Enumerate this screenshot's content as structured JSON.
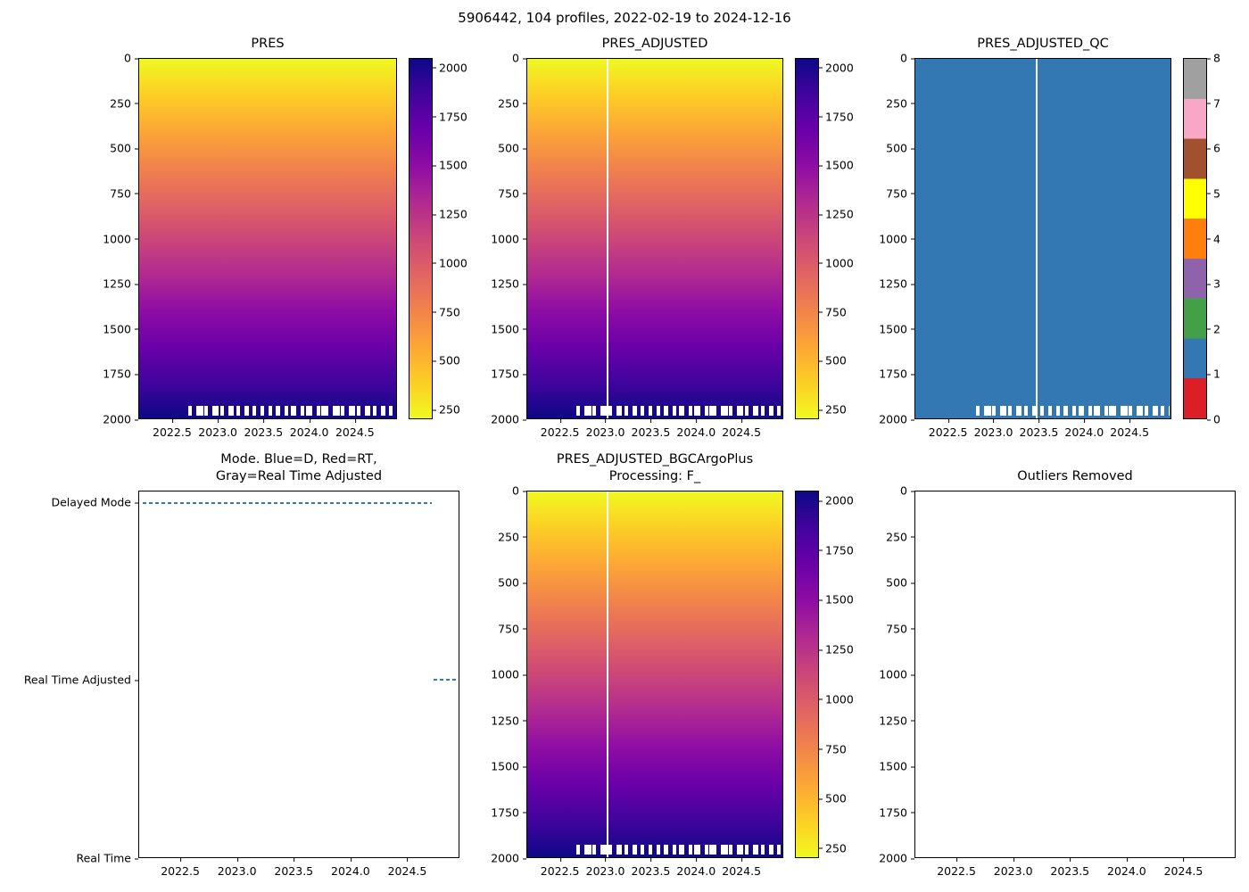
{
  "figure": {
    "title": "5906442, 104 profiles, 2022-02-19 to 2024-12-16"
  },
  "colors": {
    "plasma_surface_to_deep": [
      "#f0f921",
      "#fcce25",
      "#fca636",
      "#f1834b",
      "#e16462",
      "#cc4778",
      "#b12a90",
      "#8f0da4",
      "#6a00a8",
      "#41049d",
      "#0d0887"
    ],
    "qc_palette_0_to_8": [
      "#dc1f26",
      "#3377b3",
      "#43a047",
      "#8e63ac",
      "#ff7f0e",
      "#ffff00",
      "#a1512e",
      "#f8a8c6",
      "#a0a0a0"
    ],
    "qc_fill": "#3377b3",
    "mode_line": "#3577b4",
    "missing_data_marks": "#ffffff"
  },
  "chart_data": [
    {
      "id": "pres",
      "type": "heatmap",
      "title": "PRES",
      "xlim": [
        2022.13,
        2024.96
      ],
      "ylim": [
        0,
        2000
      ],
      "xticks": [
        "2022.5",
        "2023.0",
        "2023.5",
        "2024.0",
        "2024.5"
      ],
      "yticks": [
        "0",
        "250",
        "500",
        "750",
        "1000",
        "1250",
        "1500",
        "1750",
        "2000"
      ],
      "fill": "gradient",
      "values_note": "Pressure increases uniformly with depth for all 104 profiles: ~0 dbar at the surface (yellow) down to ~2000 dbar at the bottom (dark blue); short white dashes near 2000 m mark profiles that did not reach full depth",
      "missing_from_x": 2022.67,
      "colorbar": {
        "type": "continuous",
        "range": [
          200,
          2050
        ],
        "ticks": [
          "2000",
          "1750",
          "1500",
          "1250",
          "1000",
          "750",
          "500",
          "250"
        ]
      }
    },
    {
      "id": "pres_adjusted",
      "type": "heatmap",
      "title": "PRES_ADJUSTED",
      "xlim": [
        2022.13,
        2024.96
      ],
      "ylim": [
        0,
        2000
      ],
      "xticks": [
        "2022.5",
        "2023.0",
        "2023.5",
        "2024.0",
        "2024.5"
      ],
      "yticks": [
        "0",
        "250",
        "500",
        "750",
        "1000",
        "1250",
        "1500",
        "1750",
        "2000"
      ],
      "fill": "gradient",
      "values_note": "Adjusted pressure, same 0-2000 dbar gradient with depth; white vertical stripe = missing profile near 2023.0",
      "gap_line_x": 2023.02,
      "missing_from_x": 2022.67,
      "colorbar": {
        "type": "continuous",
        "range": [
          200,
          2050
        ],
        "ticks": [
          "2000",
          "1750",
          "1500",
          "1250",
          "1000",
          "750",
          "500",
          "250"
        ]
      }
    },
    {
      "id": "pres_adjusted_qc",
      "type": "heatmap",
      "title": "PRES_ADJUSTED_QC",
      "xlim": [
        2022.13,
        2024.96
      ],
      "ylim": [
        0,
        2000
      ],
      "xticks": [
        "2022.5",
        "2023.0",
        "2023.5",
        "2024.0",
        "2024.5"
      ],
      "yticks": [
        "0",
        "250",
        "500",
        "750",
        "1000",
        "1250",
        "1500",
        "1750",
        "2000"
      ],
      "fill": "solid",
      "value_constant": 1,
      "values_note": "QC flag = 1 (good data) for essentially all points; white vertical stripe = missing profile near 2023.5",
      "gap_line_x": 2023.48,
      "missing_from_x": 2022.8,
      "colorbar": {
        "type": "discrete",
        "ticks": [
          "8",
          "7",
          "6",
          "5",
          "4",
          "3",
          "2",
          "1",
          "0"
        ]
      }
    },
    {
      "id": "mode",
      "type": "line",
      "title": "Mode. Blue=D, Red=RT,\nGray=Real Time Adjusted",
      "xlim": [
        2022.13,
        2024.96
      ],
      "xticks": [
        "2022.5",
        "2023.0",
        "2023.5",
        "2024.0",
        "2024.5"
      ],
      "ycategories": [
        {
          "label": "Delayed Mode",
          "f": 0.032
        },
        {
          "label": "Real Time Adjusted",
          "f": 0.515
        },
        {
          "label": "Real Time",
          "f": 1.0
        }
      ],
      "values_note": "Profiles are in Delayed Mode from ~2022.16 through ~2024.72, then Real Time Adjusted from ~2024.74 to ~2024.95",
      "segments": [
        {
          "label": "Delayed Mode",
          "f": 0.032,
          "x0": 2022.16,
          "x1": 2024.72
        },
        {
          "label": "Real Time Adjusted",
          "f": 0.515,
          "x0": 2024.74,
          "x1": 2024.95
        }
      ]
    },
    {
      "id": "pres_adjusted_bgc",
      "type": "heatmap",
      "title": "PRES_ADJUSTED_BGCArgoPlus\nProcessing: F_",
      "xlim": [
        2022.13,
        2024.96
      ],
      "ylim": [
        0,
        2000
      ],
      "xticks": [
        "2022.5",
        "2023.0",
        "2023.5",
        "2024.0",
        "2024.5"
      ],
      "yticks": [
        "0",
        "250",
        "500",
        "750",
        "1000",
        "1250",
        "1500",
        "1750",
        "2000"
      ],
      "fill": "gradient",
      "values_note": "BGC-Argo-Plus processed adjusted pressure, 0-2000 dbar gradient with depth; white vertical stripe = missing profile near 2023.0",
      "gap_line_x": 2023.02,
      "missing_from_x": 2022.67,
      "colorbar": {
        "type": "continuous",
        "range": [
          200,
          2050
        ],
        "ticks": [
          "2000",
          "1750",
          "1500",
          "1250",
          "1000",
          "750",
          "500",
          "250"
        ]
      }
    },
    {
      "id": "outliers_removed",
      "type": "scatter",
      "title": "Outliers Removed",
      "xlim": [
        2022.13,
        2024.96
      ],
      "ylim": [
        0,
        2000
      ],
      "xticks": [
        "2022.5",
        "2023.0",
        "2023.5",
        "2024.0",
        "2024.5"
      ],
      "yticks": [
        "0",
        "250",
        "500",
        "750",
        "1000",
        "1250",
        "1500",
        "1750",
        "2000"
      ],
      "points": [],
      "values_note": "Empty axes: no outliers were removed"
    }
  ]
}
